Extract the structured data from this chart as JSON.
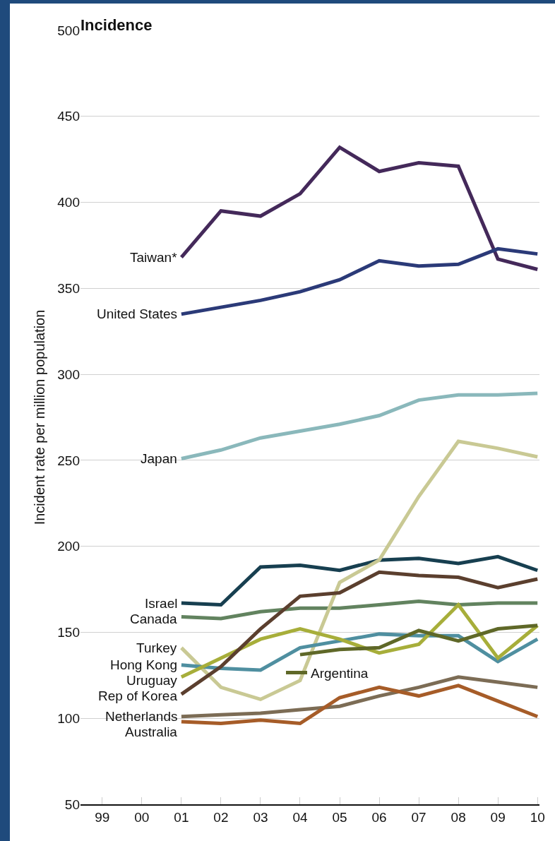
{
  "chart_data": {
    "type": "line",
    "title": "Incidence",
    "ylabel": "Incident rate per million population",
    "categories": [
      "99",
      "00",
      "01",
      "02",
      "03",
      "04",
      "05",
      "06",
      "07",
      "08",
      "09",
      "10"
    ],
    "ylim": [
      50,
      500
    ],
    "yticks": [
      50,
      100,
      150,
      200,
      250,
      300,
      350,
      400,
      450,
      500
    ],
    "grid": "y",
    "legend": "bottom",
    "marker": "none",
    "line_style": "solid",
    "series": [
      {
        "name": "Taiwan*",
        "color": "#44295a",
        "values": [
          null,
          null,
          368,
          395,
          392,
          405,
          432,
          418,
          423,
          421,
          367,
          361
        ]
      },
      {
        "name": "United States",
        "color": "#2b3a78",
        "values": [
          null,
          null,
          335,
          339,
          343,
          348,
          355,
          366,
          363,
          364,
          373,
          370
        ]
      },
      {
        "name": "Japan",
        "color": "#8ab8bb",
        "values": [
          null,
          null,
          251,
          256,
          263,
          267,
          271,
          276,
          285,
          288,
          288,
          289
        ]
      },
      {
        "name": "Israel",
        "color": "#173f50",
        "values": [
          null,
          null,
          167,
          166,
          188,
          189,
          186,
          192,
          193,
          190,
          194,
          186
        ]
      },
      {
        "name": "Canada",
        "color": "#62835f",
        "values": [
          null,
          null,
          159,
          158,
          162,
          164,
          164,
          166,
          168,
          166,
          167,
          167
        ]
      },
      {
        "name": "Turkey",
        "color": "#c9c994",
        "values": [
          null,
          null,
          141,
          118,
          111,
          122,
          179,
          192,
          229,
          261,
          257,
          252
        ]
      },
      {
        "name": "Hong Kong",
        "color": "#4f8fa0",
        "values": [
          null,
          null,
          131,
          129,
          128,
          141,
          145,
          149,
          148,
          148,
          133,
          146
        ]
      },
      {
        "name": "Uruguay",
        "color": "#a7ae3a",
        "values": [
          null,
          null,
          124,
          135,
          146,
          152,
          146,
          138,
          143,
          166,
          135,
          154
        ]
      },
      {
        "name": "Rep of Korea",
        "color": "#5b3f2e",
        "values": [
          null,
          null,
          114,
          130,
          152,
          171,
          173,
          185,
          183,
          182,
          176,
          181
        ]
      },
      {
        "name": "Netherlands",
        "color": "#7c6c55",
        "values": [
          null,
          null,
          101,
          102,
          103,
          105,
          107,
          113,
          118,
          124,
          121,
          118
        ]
      },
      {
        "name": "Australia",
        "color": "#a65c28",
        "values": [
          null,
          null,
          98,
          97,
          99,
          97,
          112,
          118,
          113,
          119,
          110,
          101
        ]
      },
      {
        "name": "Argentina",
        "color": "#5f6828",
        "values": [
          null,
          null,
          null,
          null,
          null,
          137,
          140,
          141,
          151,
          145,
          152,
          154
        ]
      }
    ]
  }
}
